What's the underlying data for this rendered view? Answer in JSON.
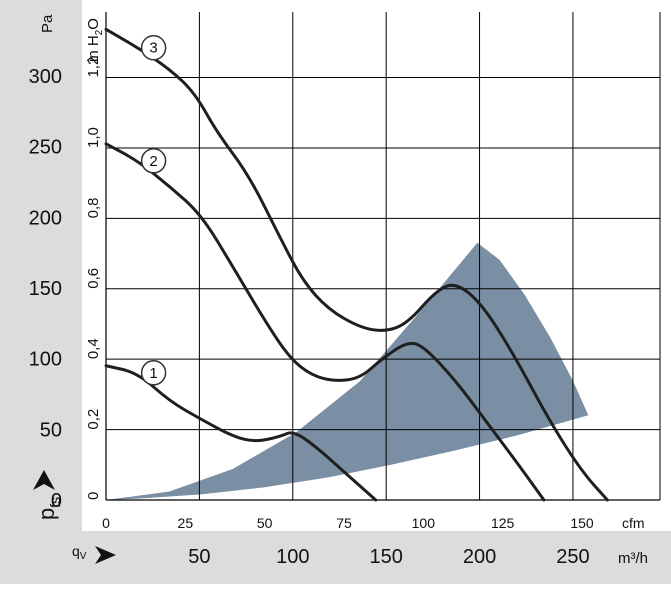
{
  "chart_data": {
    "type": "line",
    "title": "",
    "x_axis_primary": {
      "unit": "cfm",
      "ticks": [
        0,
        25,
        50,
        75,
        100,
        125,
        150
      ],
      "range": [
        0,
        175
      ]
    },
    "x_axis_secondary": {
      "label": "qV",
      "unit": "m³/h",
      "ticks": [
        50,
        100,
        150,
        200,
        250
      ]
    },
    "y_axis_primary": {
      "label": "pfs",
      "unit": "Pa",
      "ticks": [
        0,
        50,
        100,
        150,
        200,
        250,
        300
      ],
      "range": [
        0,
        340
      ]
    },
    "y_axis_secondary": {
      "unit": "in H₂O",
      "ticks": [
        "0",
        "0,2",
        "0,4",
        "0,6",
        "0,8",
        "1,0",
        "1,2"
      ]
    },
    "grid": true,
    "series": [
      {
        "name": "1",
        "points": [
          [
            0,
            95
          ],
          [
            10,
            90
          ],
          [
            20,
            70
          ],
          [
            30,
            57
          ],
          [
            40,
            45
          ],
          [
            47,
            41
          ],
          [
            55,
            45
          ],
          [
            59,
            49
          ],
          [
            66,
            38
          ],
          [
            75,
            20
          ],
          [
            85,
            0
          ]
        ]
      },
      {
        "name": "2",
        "points": [
          [
            0,
            252
          ],
          [
            10,
            240
          ],
          [
            20,
            222
          ],
          [
            30,
            202
          ],
          [
            40,
            165
          ],
          [
            50,
            127
          ],
          [
            58,
            100
          ],
          [
            65,
            88
          ],
          [
            72,
            84
          ],
          [
            80,
            86
          ],
          [
            87,
            100
          ],
          [
            95,
            112
          ],
          [
            100,
            109
          ],
          [
            110,
            85
          ],
          [
            120,
            55
          ],
          [
            130,
            25
          ],
          [
            138,
            0
          ]
        ]
      },
      {
        "name": "3",
        "points": [
          [
            0,
            333
          ],
          [
            10,
            320
          ],
          [
            20,
            305
          ],
          [
            28,
            288
          ],
          [
            35,
            260
          ],
          [
            45,
            230
          ],
          [
            55,
            185
          ],
          [
            62,
            155
          ],
          [
            70,
            135
          ],
          [
            80,
            122
          ],
          [
            88,
            119
          ],
          [
            95,
            125
          ],
          [
            104,
            148
          ],
          [
            110,
            154
          ],
          [
            118,
            140
          ],
          [
            128,
            105
          ],
          [
            140,
            55
          ],
          [
            150,
            20
          ],
          [
            158,
            0
          ]
        ]
      }
    ],
    "operating_range": {
      "color": "#7a8fa4",
      "upper": [
        [
          0,
          0
        ],
        [
          20,
          6
        ],
        [
          40,
          22
        ],
        [
          60,
          48
        ],
        [
          80,
          84
        ],
        [
          100,
          136
        ],
        [
          117,
          182
        ],
        [
          124,
          170
        ],
        [
          132,
          145
        ],
        [
          140,
          115
        ],
        [
          147,
          85
        ],
        [
          152,
          60
        ]
      ],
      "lower": [
        [
          152,
          60
        ],
        [
          130,
          46
        ],
        [
          110,
          35
        ],
        [
          90,
          25
        ],
        [
          70,
          16
        ],
        [
          50,
          9
        ],
        [
          30,
          4
        ],
        [
          10,
          1
        ],
        [
          0,
          0
        ]
      ]
    },
    "colors": {
      "curve": "#1f1f1f",
      "grid": "#000000",
      "label_band": "#dcdcdc"
    }
  }
}
